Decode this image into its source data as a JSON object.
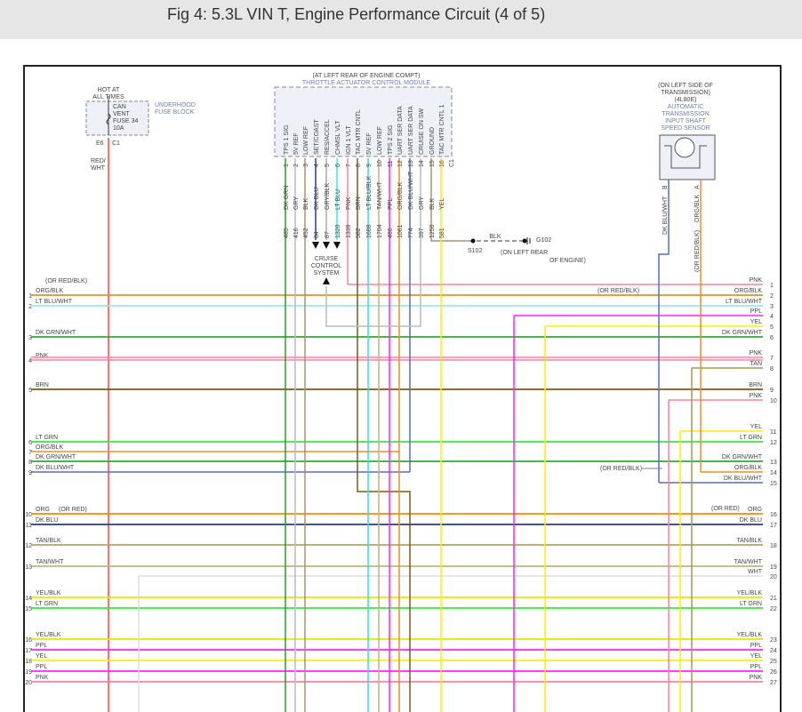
{
  "title": "Fig 4: 5.3L VIN T, Engine Performance Circuit (4 of 5)",
  "fuse": {
    "hot": [
      "HOT AT",
      "ALL TIMES"
    ],
    "name": [
      "CAN",
      "VENT",
      "FUSE 34",
      "10A"
    ],
    "block": [
      "UNDERHOOD",
      "FUSE BLOCK"
    ],
    "pin_left": "E6",
    "pin_right": "C1",
    "wire": [
      "RED/",
      "WHT"
    ]
  },
  "module": {
    "location": "(AT LEFT REAR OF ENGINE COMPT)",
    "name": "THROTTLE ACTUATOR CONTROL MODULE",
    "connector": "C1",
    "pins": [
      {
        "num": "1",
        "label": "TPS 1 SIG",
        "wire": "DK GRN",
        "circuit": "485"
      },
      {
        "num": "2",
        "label": "5V REF",
        "wire": "GRY",
        "circuit": "416"
      },
      {
        "num": "3",
        "label": "LOW REF",
        "wire": "BLK",
        "circuit": "452"
      },
      {
        "num": "4",
        "label": "SET/COAST",
        "wire": "DK BLU",
        "circuit": "84"
      },
      {
        "num": "5",
        "label": "RES/ACCEL",
        "wire": "GRY/BLK",
        "circuit": "87"
      },
      {
        "num": "6",
        "label": "CHMSL VLT",
        "wire": "LT BLU",
        "circuit": "1320"
      },
      {
        "num": "7",
        "label": "IGN 1 VLT",
        "wire": "PNK",
        "circuit": "1339"
      },
      {
        "num": "8",
        "label": "TAC MTR CNTL",
        "wire": "BRN",
        "circuit": "582"
      },
      {
        "num": "9",
        "label": "5V REF",
        "wire": "LT BLU/BLK",
        "circuit": "1688"
      },
      {
        "num": "10",
        "label": "LOW REF",
        "wire": "TAN/WHT",
        "circuit": "1704"
      },
      {
        "num": "11",
        "label": "TPS 2 SIG",
        "wire": "PPL",
        "circuit": "486"
      },
      {
        "num": "12",
        "label": "UART SER DATA",
        "wire": "ORG/BLK",
        "circuit": "1061"
      },
      {
        "num": "13",
        "label": "UART SER DATA",
        "wire": "DK BLU/WHT",
        "circuit": "774"
      },
      {
        "num": "14",
        "label": "CRUISE ON SW",
        "wire": "GRY",
        "circuit": "397"
      },
      {
        "num": "15",
        "label": "GROUND",
        "wire": "BLK",
        "circuit": "1250"
      },
      {
        "num": "16",
        "label": "TAC MTR CNTL 1",
        "wire": "YEL",
        "circuit": "581"
      }
    ]
  },
  "cruise": [
    "CRUISE",
    "CONTROL",
    "SYSTEM"
  ],
  "ground": {
    "wire": "BLK",
    "splice": "S102",
    "ground": "G102",
    "location": [
      "(ON LEFT REAR",
      "OF ENGINE)"
    ]
  },
  "sensor": {
    "location": [
      "(ON LEFT SIDE OF",
      "TRANSMISSION)",
      "(4L80E)"
    ],
    "name": [
      "AUTOMATIC",
      "TRANSMISSION",
      "INPUT SHAFT",
      "SPEED SENSOR"
    ],
    "pins": [
      {
        "pin": "B",
        "wire": "DK BLU/WHT"
      },
      {
        "pin": "A",
        "wire": "ORG/BLK",
        "alt": "(OR RED/BLK)"
      }
    ]
  },
  "left_rows": [
    {
      "num": "1",
      "label": "ORG/BLK",
      "note": "(OR RED/BLK)"
    },
    {
      "num": "2",
      "label": "LT BLU/WHT"
    },
    {
      "num": "3",
      "label": "DK GRN/WHT"
    },
    {
      "num": "4",
      "label": "PNK"
    },
    {
      "num": "5",
      "label": "BRN"
    },
    {
      "num": "6",
      "label": "LT GRN"
    },
    {
      "num": "7",
      "label": "ORG/BLK"
    },
    {
      "num": "8",
      "label": "DK GRN/WHT"
    },
    {
      "num": "9",
      "label": "DK BLU/WHT"
    },
    {
      "num": "10",
      "label": "ORG",
      "note": "(OR RED)"
    },
    {
      "num": "11",
      "label": "DK BLU"
    },
    {
      "num": "12",
      "label": "TAN/BLK"
    },
    {
      "num": "13",
      "label": "TAN/WHT"
    },
    {
      "num": "14",
      "label": "YEL/BLK"
    },
    {
      "num": "15",
      "label": "LT GRN"
    },
    {
      "num": "16",
      "label": "YEL/BLK"
    },
    {
      "num": "17",
      "label": "PPL"
    },
    {
      "num": "18",
      "label": "YEL"
    },
    {
      "num": "19",
      "label": "PPL"
    },
    {
      "num": "20",
      "label": "PNK"
    }
  ],
  "right_rows": [
    {
      "num": "1",
      "label": "PNK"
    },
    {
      "num": "2",
      "label": "ORG/BLK",
      "note": "(OR RED/BLK)"
    },
    {
      "num": "3",
      "label": "LT BLU/WHT"
    },
    {
      "num": "4",
      "label": "PPL"
    },
    {
      "num": "5",
      "label": "YEL"
    },
    {
      "num": "6",
      "label": "DK GRN/WHT"
    },
    {
      "num": "7",
      "label": "PNK"
    },
    {
      "num": "8",
      "label": "TAN"
    },
    {
      "num": "9",
      "label": "BRN"
    },
    {
      "num": "10",
      "label": "PNK"
    },
    {
      "num": "11",
      "label": "YEL"
    },
    {
      "num": "12",
      "label": "LT GRN"
    },
    {
      "num": "13",
      "label": "DK GRN/WHT"
    },
    {
      "num": "14",
      "label": "ORG/BLK",
      "note": "(OR RED/BLK)"
    },
    {
      "num": "15",
      "label": "DK BLU/WHT"
    },
    {
      "num": "16",
      "label": "ORG",
      "note": "(OR RED)"
    },
    {
      "num": "17",
      "label": "DK BLU"
    },
    {
      "num": "18",
      "label": "TAN/BLK"
    },
    {
      "num": "19",
      "label": "TAN/WHT"
    },
    {
      "num": "20",
      "label": "WHT"
    },
    {
      "num": "21",
      "label": "YEL/BLK"
    },
    {
      "num": "22",
      "label": "LT GRN"
    },
    {
      "num": "23",
      "label": "YEL/BLK"
    },
    {
      "num": "24",
      "label": "PPL"
    },
    {
      "num": "25",
      "label": "YEL"
    },
    {
      "num": "26",
      "label": "PPL"
    },
    {
      "num": "27",
      "label": "PNK"
    }
  ],
  "wire_colors": {
    "ORG/BLK": "#e8902a",
    "LT BLU/WHT": "#a0e4f2",
    "DK GRN/WHT": "#33aa33",
    "PNK": "#ff80a0",
    "BRN": "#7a5a1a",
    "LT GRN": "#33ee33",
    "DK BLU/WHT": "#5570b0",
    "ORG": "#ff8800",
    "DK BLU": "#2a3a80",
    "TAN/BLK": "#b8a070",
    "TAN/WHT": "#c8b080",
    "YEL/BLK": "#e8e800",
    "PPL": "#ff22ff",
    "YEL": "#ffee00",
    "WHT": "#dddddd",
    "TAN": "#b0925a",
    "GRY": "#bbbbbb",
    "BLK": "#a89070",
    "DK GRN": "#22a022",
    "LT BLU": "#33eeee",
    "GRY/BLK": "#aaaaaa",
    "LT BLU/BLK": "#33dddd",
    "RED/WHT": "#ff4040"
  }
}
